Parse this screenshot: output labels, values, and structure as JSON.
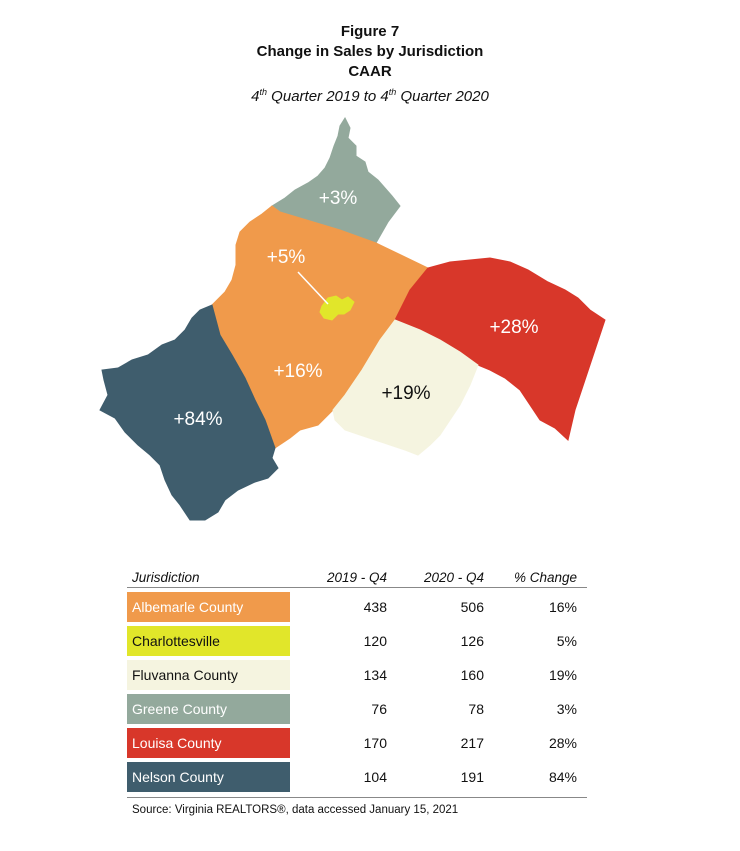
{
  "figure": {
    "label": "Figure 7",
    "title": "Change in Sales by Jurisdiction",
    "org": "CAAR",
    "subtitle_parts": [
      "4",
      "th",
      " Quarter 2019 to 4",
      "th",
      " Quarter 2020"
    ]
  },
  "map": {
    "regions": [
      {
        "name": "Greene County",
        "label": "+3%",
        "color": "#93a99c",
        "text_color": "#ffffff"
      },
      {
        "name": "Albemarle County",
        "label": "+16%",
        "color": "#f09a4b",
        "text_color": "#ffffff"
      },
      {
        "name": "Charlottesville",
        "label": "+5%",
        "color": "#e1e62a",
        "text_color": "#ffffff"
      },
      {
        "name": "Louisa County",
        "label": "+28%",
        "color": "#d8372a",
        "text_color": "#ffffff"
      },
      {
        "name": "Fluvanna County",
        "label": "+19%",
        "color": "#f5f4e0",
        "text_color": "#111111"
      },
      {
        "name": "Nelson County",
        "label": "+84%",
        "color": "#3f5d6d",
        "text_color": "#ffffff"
      }
    ]
  },
  "table": {
    "headers": {
      "jurisdiction": "Jurisdiction",
      "y2019": "2019 - Q4",
      "y2020": "2020 - Q4",
      "change": "% Change"
    },
    "rows": [
      {
        "name": "Albemarle County",
        "y2019": "438",
        "y2020": "506",
        "change": "16%"
      },
      {
        "name": "Charlottesville",
        "y2019": "120",
        "y2020": "126",
        "change": "5%"
      },
      {
        "name": "Fluvanna County",
        "y2019": "134",
        "y2020": "160",
        "change": "19%"
      },
      {
        "name": "Greene County",
        "y2019": "76",
        "y2020": "78",
        "change": "3%"
      },
      {
        "name": "Louisa County",
        "y2019": "170",
        "y2020": "217",
        "change": "28%"
      },
      {
        "name": "Nelson County",
        "y2019": "104",
        "y2020": "191",
        "change": "84%"
      }
    ],
    "row_colors": [
      {
        "bg": "#f09a4b",
        "fg": "#ffffff"
      },
      {
        "bg": "#e1e62a",
        "fg": "#111111"
      },
      {
        "bg": "#f5f4e0",
        "fg": "#111111"
      },
      {
        "bg": "#93a99c",
        "fg": "#ffffff"
      },
      {
        "bg": "#d8372a",
        "fg": "#ffffff"
      },
      {
        "bg": "#3f5d6d",
        "fg": "#ffffff"
      }
    ],
    "source": "Source: Virginia REALTORS®, data accessed January 15, 2021"
  }
}
